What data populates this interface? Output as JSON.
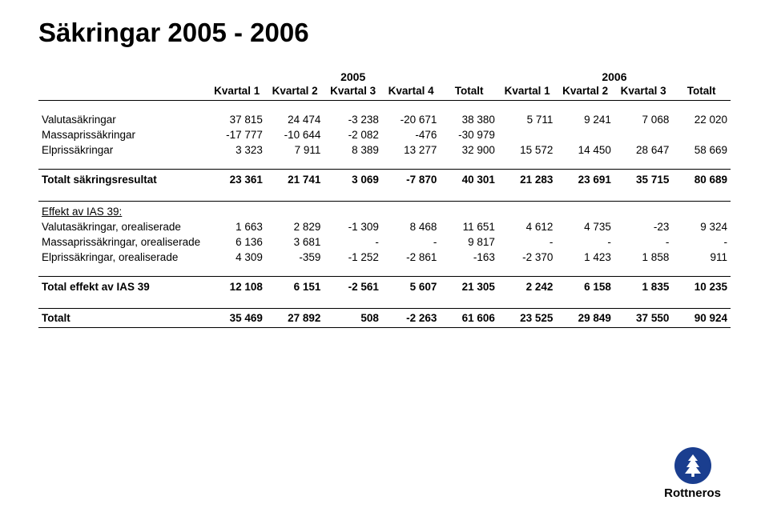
{
  "page": {
    "title": "Säkringar 2005 - 2006",
    "brand": "Rottneros"
  },
  "colors": {
    "text": "#000000",
    "background": "#ffffff",
    "rule": "#000000",
    "logo_circle": "#1a3e8f",
    "logo_tree": "#ffffff"
  },
  "table": {
    "yearGroups": [
      {
        "label": "2005",
        "span": 5
      },
      {
        "label": "2006",
        "span": 4
      }
    ],
    "columns": [
      "Kvartal 1",
      "Kvartal 2",
      "Kvartal 3",
      "Kvartal 4",
      "Totalt",
      "Kvartal 1",
      "Kvartal 2",
      "Kvartal 3",
      "Totalt"
    ],
    "blocks": [
      {
        "rows": [
          {
            "label": "Valutasäkringar",
            "cells": [
              "37 815",
              "24 474",
              "-3 238",
              "-20 671",
              "38 380",
              "5 711",
              "9 241",
              "7 068",
              "22 020"
            ]
          },
          {
            "label": "Massaprissäkringar",
            "cells": [
              "-17 777",
              "-10 644",
              "-2 082",
              "-476",
              "-30 979",
              "",
              "",
              "",
              ""
            ]
          },
          {
            "label": "Elprissäkringar",
            "cells": [
              "3 323",
              "7 911",
              "8 389",
              "13 277",
              "32 900",
              "15 572",
              "14 450",
              "28 647",
              "58 669"
            ]
          }
        ]
      },
      {
        "totalRow": {
          "label": "Totalt säkringsresultat",
          "cells": [
            "23 361",
            "21 741",
            "3 069",
            "-7 870",
            "40 301",
            "21 283",
            "23 691",
            "35 715",
            "80 689"
          ]
        }
      },
      {
        "header": "Effekt av IAS 39:",
        "rows": [
          {
            "label": "Valutasäkringar, orealiserade",
            "cells": [
              "1 663",
              "2 829",
              "-1 309",
              "8 468",
              "11 651",
              "4 612",
              "4 735",
              "-23",
              "9 324"
            ]
          },
          {
            "label": "Massaprissäkringar, orealiserade",
            "cells": [
              "6 136",
              "3 681",
              "-",
              "-",
              "9 817",
              "-",
              "-",
              "-",
              "-"
            ]
          },
          {
            "label": "Elprissäkringar, orealiserade",
            "cells": [
              "4 309",
              "-359",
              "-1 252",
              "-2 861",
              "-163",
              "-2 370",
              "1 423",
              "1 858",
              "911"
            ]
          }
        ]
      },
      {
        "totalRow": {
          "label": "Total effekt av IAS 39",
          "cells": [
            "12 108",
            "6 151",
            "-2 561",
            "5 607",
            "21 305",
            "2 242",
            "6 158",
            "1 835",
            "10 235"
          ]
        }
      }
    ],
    "grandTotal": {
      "label": "Totalt",
      "cells": [
        "35 469",
        "27 892",
        "508",
        "-2 263",
        "61 606",
        "23 525",
        "29 849",
        "37 550",
        "90 924"
      ]
    }
  }
}
